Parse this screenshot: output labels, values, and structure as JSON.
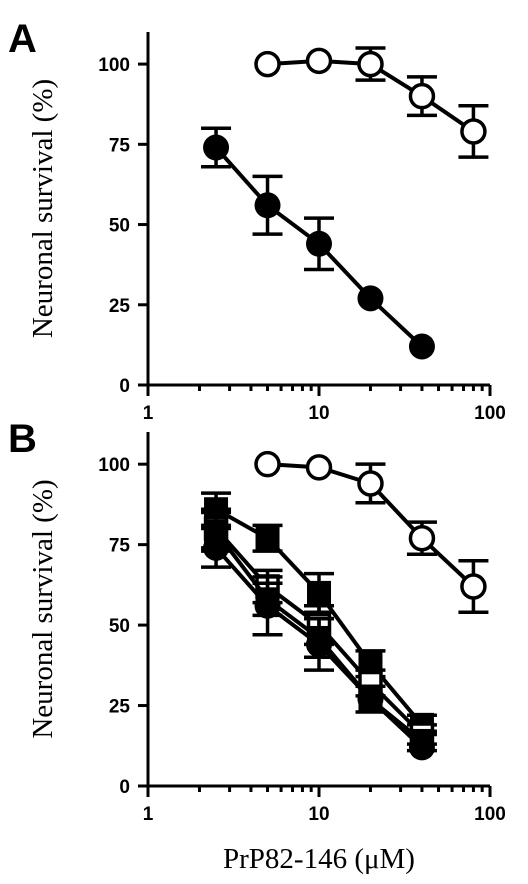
{
  "chart_data": [
    {
      "type": "scatter",
      "panel_label": "A",
      "ylabel": "Neuronal survival (%)",
      "xlabel": "",
      "xscale": "log",
      "xlim": [
        1,
        100
      ],
      "ylim": [
        0,
        110
      ],
      "yticks": [
        0,
        25,
        50,
        75,
        100
      ],
      "xticks": [
        1,
        10,
        100
      ],
      "ytick_labels": [
        "0",
        "25",
        "50",
        "75",
        "100"
      ],
      "xtick_labels": [
        "1",
        "10",
        "100"
      ],
      "legend": "none",
      "grid": false,
      "series": [
        {
          "marker": "circle-open",
          "color": "#000000",
          "x": [
            5,
            10,
            20,
            40,
            80
          ],
          "y": [
            100,
            101,
            100,
            90,
            79
          ],
          "err": [
            0,
            0,
            5,
            6,
            8
          ]
        },
        {
          "marker": "circle-filled",
          "color": "#000000",
          "x": [
            2.5,
            5,
            10,
            20,
            40
          ],
          "y": [
            74,
            56,
            44,
            27,
            12
          ],
          "err": [
            6,
            9,
            8,
            0,
            0
          ]
        }
      ]
    },
    {
      "type": "scatter",
      "panel_label": "B",
      "ylabel": "Neuronal survival (%)",
      "xlabel": "PrP82-146 (μM)",
      "xscale": "log",
      "xlim": [
        1,
        100
      ],
      "ylim": [
        0,
        110
      ],
      "yticks": [
        0,
        25,
        50,
        75,
        100
      ],
      "xticks": [
        1,
        10,
        100
      ],
      "ytick_labels": [
        "0",
        "25",
        "50",
        "75",
        "100"
      ],
      "xtick_labels": [
        "1",
        "10",
        "100"
      ],
      "legend": "none",
      "grid": false,
      "series": [
        {
          "marker": "circle-open",
          "color": "#000000",
          "x": [
            5,
            10,
            20,
            40,
            80
          ],
          "y": [
            100,
            99,
            94,
            77,
            62
          ],
          "err": [
            0,
            0,
            6,
            5,
            8
          ]
        },
        {
          "marker": "square-filled",
          "color": "#000000",
          "x": [
            2.5,
            5,
            10,
            20,
            40
          ],
          "y": [
            86,
            77,
            60,
            38,
            19
          ],
          "err": [
            5,
            4,
            6,
            4,
            3
          ]
        },
        {
          "marker": "square-open",
          "color": "#000000",
          "x": [
            2.5,
            5,
            10,
            20,
            40
          ],
          "y": [
            80,
            62,
            50,
            32,
            16
          ],
          "err": [
            6,
            5,
            6,
            4,
            3
          ]
        },
        {
          "marker": "square-filled",
          "color": "#000000",
          "x": [
            2.5,
            5,
            10,
            20,
            40
          ],
          "y": [
            79,
            58,
            46,
            27,
            14
          ],
          "err": [
            6,
            5,
            6,
            4,
            3
          ]
        },
        {
          "marker": "circle-filled",
          "color": "#000000",
          "x": [
            2.5,
            5,
            10,
            20,
            40
          ],
          "y": [
            74,
            56,
            44,
            27,
            12
          ],
          "err": [
            6,
            9,
            8,
            0,
            0
          ]
        }
      ]
    }
  ]
}
